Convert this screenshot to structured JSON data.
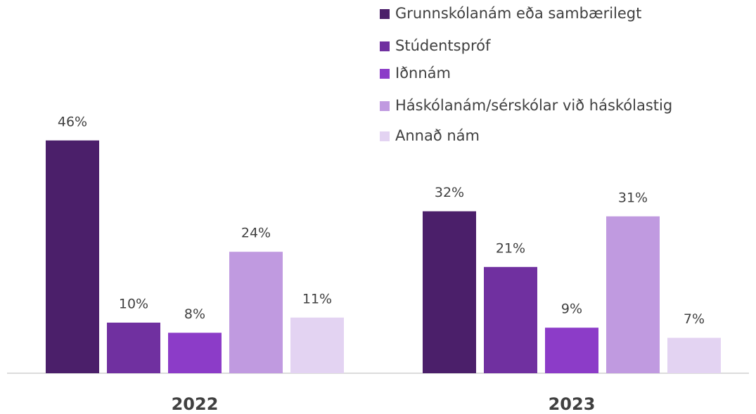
{
  "chart_data": {
    "type": "bar",
    "categories": [
      "2022",
      "2023"
    ],
    "series": [
      {
        "name": "Grunnskólanám eða sambærilegt",
        "color": "#4b1f6a",
        "values": [
          46,
          32
        ],
        "value_labels": [
          "46%",
          "32%"
        ]
      },
      {
        "name": "Stúdentspróf",
        "color": "#7030a0",
        "values": [
          10,
          21
        ],
        "value_labels": [
          "10%",
          "21%"
        ]
      },
      {
        "name": "Iðnnám",
        "color": "#8c3cc8",
        "values": [
          8,
          9
        ],
        "value_labels": [
          "8%",
          "9%"
        ]
      },
      {
        "name": "Háskólanám/sérskólar við háskólastig",
        "color": "#c09ae0",
        "values": [
          24,
          31
        ],
        "value_labels": [
          "24%",
          "31%"
        ]
      },
      {
        "name": "Annað nám",
        "color": "#e3d3f2",
        "values": [
          11,
          7
        ],
        "value_labels": [
          "11%",
          "7%"
        ]
      }
    ],
    "legend": "top-right"
  }
}
